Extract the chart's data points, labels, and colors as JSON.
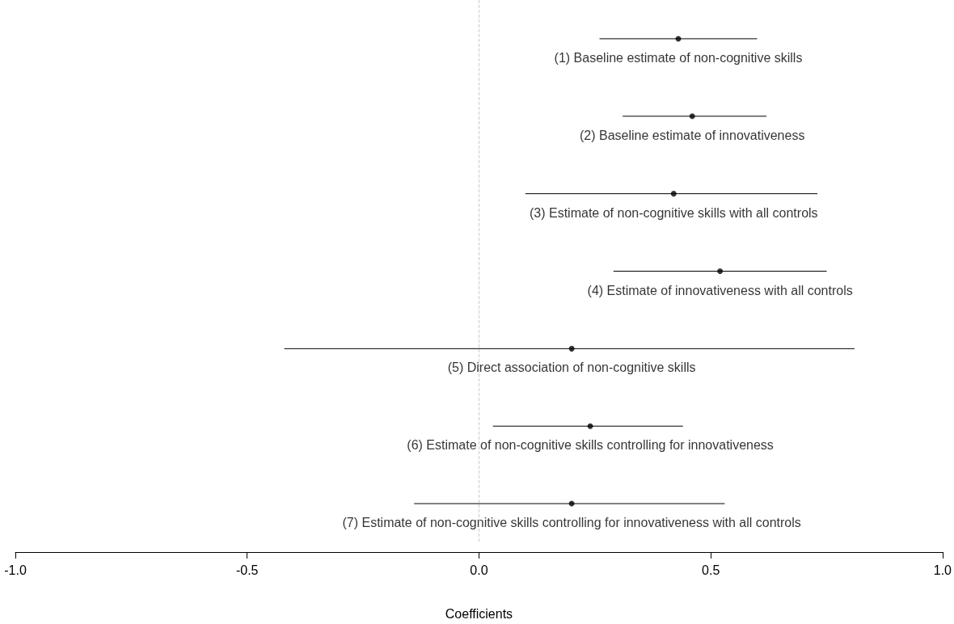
{
  "chart_data": {
    "type": "scatter",
    "orientation": "horizontal",
    "categories": [
      "(1) Baseline estimate of non-cognitive skills",
      "(2) Baseline estimate of innovativeness",
      "(3) Estimate of non-cognitive skills with all controls",
      "(4) Estimate of innovativeness with all controls",
      "(5) Direct association of non-cognitive skills",
      "(6) Estimate of non-cognitive skills controlling for innovativeness",
      "(7) Estimate of non-cognitive skills controlling for innovativeness with all controls"
    ],
    "values": [
      0.43,
      0.46,
      0.42,
      0.52,
      0.2,
      0.24,
      0.2
    ],
    "errors": [
      [
        0.26,
        0.6
      ],
      [
        0.31,
        0.62
      ],
      [
        0.1,
        0.73
      ],
      [
        0.29,
        0.75
      ],
      [
        -0.42,
        0.81
      ],
      [
        0.03,
        0.44
      ],
      [
        -0.14,
        0.53
      ]
    ],
    "color": "#000000",
    "marker": "circle",
    "xlabel": "Coefficients",
    "xlim": [
      -1,
      1
    ],
    "xticks": [
      {
        "value": -1,
        "label": "-1.0"
      },
      {
        "value": -0.5,
        "label": "-0.5"
      },
      {
        "value": 0,
        "label": "0.0"
      },
      0.5,
      {
        "value": 1,
        "label": "1.0"
      }
    ],
    "ref_lines": [
      {
        "axis": "x",
        "value": 0,
        "color": "#cccccc",
        "line_style": "dashed"
      }
    ],
    "tick_labels": "x"
  }
}
